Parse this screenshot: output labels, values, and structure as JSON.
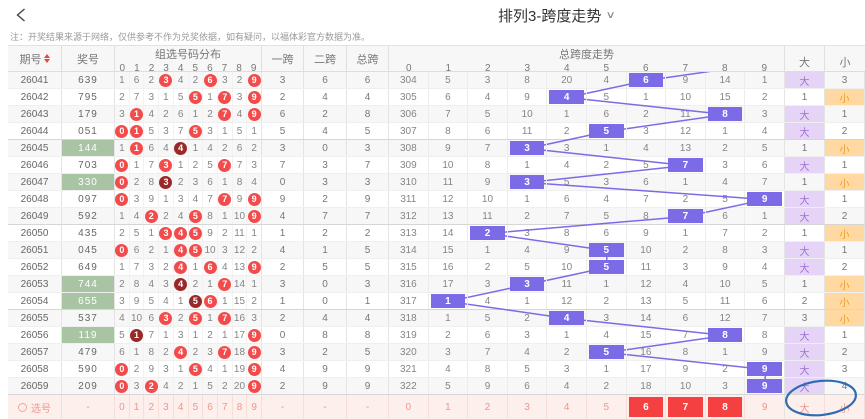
{
  "header": {
    "title": "排列3-跨度走势",
    "dropdown_icon": "∨",
    "back_icon": "‹"
  },
  "notice": "注：开奖结果来源于网络，仅供参考不作为兑奖依据，如有疑问，以福体彩官方数据为准。",
  "colors": {
    "accent_purple": "#7b6be6",
    "hit_red": "#f34b4b",
    "hit_dark_red": "#9b2828",
    "prize_green": "#a8c4a2",
    "big_bg": "#e5d4f6",
    "big_text": "#9e6fd6",
    "small_bg": "#ffd9a1",
    "small_text": "#f59b22",
    "select_red": "#f44040",
    "select_pink": "#f1948d",
    "annotation_blue": "#2e6db4"
  },
  "table": {
    "col_issue": "期号",
    "col_prize": "奖号",
    "col_dist": "组选号码分布",
    "col_span1": "一跨",
    "col_span2": "二跨",
    "col_span_total": "总跨",
    "col_trend": "总跨度走势",
    "col_big": "大",
    "col_small": "小",
    "digits": [
      "0",
      "1",
      "2",
      "3",
      "4",
      "5",
      "6",
      "7",
      "8",
      "9"
    ],
    "prev_span": 9,
    "rows": [
      {
        "issue": "26041",
        "prize": "639",
        "prize_hl": false,
        "dist": [
          "1",
          "6",
          "2",
          "3",
          "4",
          "2",
          "6",
          "3",
          "2",
          "9"
        ],
        "marks": [
          "",
          "",
          "",
          "r",
          "",
          "",
          "r",
          "",
          "",
          "r"
        ],
        "s1": "3",
        "s2": "6",
        "st": "6",
        "trend": [
          "304",
          "5",
          "3",
          "8",
          "20",
          "4",
          "6",
          "9",
          "14",
          "1"
        ],
        "span": 6,
        "big": "大",
        "big_hl": true,
        "small": "3",
        "small_hl": false
      },
      {
        "issue": "26042",
        "prize": "795",
        "prize_hl": false,
        "dist": [
          "2",
          "7",
          "3",
          "1",
          "5",
          "5",
          "1",
          "7",
          "3",
          "9"
        ],
        "marks": [
          "",
          "",
          "",
          "",
          "",
          "r",
          "",
          "r",
          "",
          "r"
        ],
        "s1": "2",
        "s2": "4",
        "st": "4",
        "trend": [
          "305",
          "6",
          "4",
          "9",
          "4",
          "5",
          "1",
          "10",
          "15",
          "2"
        ],
        "span": 4,
        "big": "1",
        "big_hl": false,
        "small": "小",
        "small_hl": true
      },
      {
        "issue": "26043",
        "prize": "179",
        "prize_hl": false,
        "dist": [
          "3",
          "1",
          "4",
          "2",
          "6",
          "1",
          "2",
          "7",
          "4",
          "9"
        ],
        "marks": [
          "",
          "r",
          "",
          "",
          "",
          "",
          "",
          "r",
          "",
          "r"
        ],
        "s1": "6",
        "s2": "2",
        "st": "8",
        "trend": [
          "306",
          "7",
          "5",
          "10",
          "1",
          "6",
          "2",
          "11",
          "8",
          "3"
        ],
        "span": 8,
        "big": "大",
        "big_hl": true,
        "small": "1",
        "small_hl": false
      },
      {
        "issue": "26044",
        "prize": "051",
        "prize_hl": false,
        "dist": [
          "0",
          "1",
          "5",
          "3",
          "7",
          "5",
          "3",
          "1",
          "5",
          "1"
        ],
        "marks": [
          "r",
          "r",
          "",
          "",
          "",
          "r",
          "",
          "",
          "",
          ""
        ],
        "s1": "5",
        "s2": "4",
        "st": "5",
        "trend": [
          "307",
          "8",
          "6",
          "11",
          "2",
          "5",
          "3",
          "12",
          "1",
          "4"
        ],
        "span": 5,
        "big": "大",
        "big_hl": true,
        "small": "2",
        "small_hl": false
      },
      {
        "issue": "26045",
        "prize": "144",
        "prize_hl": true,
        "dist": [
          "1",
          "1",
          "6",
          "4",
          "4",
          "1",
          "4",
          "2",
          "6",
          "2"
        ],
        "marks": [
          "",
          "r",
          "",
          "",
          "d",
          "",
          "",
          "",
          "",
          ""
        ],
        "s1": "3",
        "s2": "0",
        "st": "3",
        "trend": [
          "308",
          "9",
          "7",
          "3",
          "3",
          "1",
          "4",
          "13",
          "2",
          "5"
        ],
        "span": 3,
        "big": "1",
        "big_hl": false,
        "small": "小",
        "small_hl": true
      },
      {
        "issue": "26046",
        "prize": "703",
        "prize_hl": false,
        "dist": [
          "0",
          "1",
          "7",
          "3",
          "1",
          "2",
          "5",
          "7",
          "7",
          "3"
        ],
        "marks": [
          "r",
          "",
          "",
          "r",
          "",
          "",
          "",
          "r",
          "",
          ""
        ],
        "s1": "7",
        "s2": "3",
        "st": "7",
        "trend": [
          "309",
          "10",
          "8",
          "1",
          "4",
          "2",
          "5",
          "7",
          "3",
          "6"
        ],
        "span": 7,
        "big": "大",
        "big_hl": true,
        "small": "1",
        "small_hl": false
      },
      {
        "issue": "26047",
        "prize": "330",
        "prize_hl": true,
        "dist": [
          "0",
          "2",
          "8",
          "3",
          "2",
          "3",
          "6",
          "1",
          "8",
          "4"
        ],
        "marks": [
          "r",
          "",
          "",
          "d",
          "",
          "",
          "",
          "",
          "",
          ""
        ],
        "s1": "0",
        "s2": "3",
        "st": "3",
        "trend": [
          "310",
          "11",
          "9",
          "3",
          "5",
          "3",
          "6",
          "1",
          "4",
          "7"
        ],
        "span": 3,
        "big": "1",
        "big_hl": false,
        "small": "小",
        "small_hl": true
      },
      {
        "issue": "26048",
        "prize": "097",
        "prize_hl": false,
        "dist": [
          "0",
          "3",
          "9",
          "1",
          "3",
          "4",
          "7",
          "7",
          "9",
          "9"
        ],
        "marks": [
          "r",
          "",
          "",
          "",
          "",
          "",
          "",
          "r",
          "",
          "r"
        ],
        "s1": "9",
        "s2": "2",
        "st": "9",
        "trend": [
          "311",
          "12",
          "10",
          "1",
          "6",
          "4",
          "7",
          "2",
          "5",
          "9"
        ],
        "span": 9,
        "big": "大",
        "big_hl": true,
        "small": "1",
        "small_hl": false
      },
      {
        "issue": "26049",
        "prize": "592",
        "prize_hl": false,
        "dist": [
          "1",
          "4",
          "2",
          "2",
          "4",
          "5",
          "8",
          "1",
          "10",
          "9"
        ],
        "marks": [
          "",
          "",
          "r",
          "",
          "",
          "r",
          "",
          "",
          "",
          "r"
        ],
        "s1": "4",
        "s2": "7",
        "st": "7",
        "trend": [
          "312",
          "13",
          "11",
          "2",
          "7",
          "5",
          "8",
          "7",
          "6",
          "1"
        ],
        "span": 7,
        "big": "大",
        "big_hl": true,
        "small": "2",
        "small_hl": false
      },
      {
        "issue": "26050",
        "prize": "435",
        "prize_hl": false,
        "dist": [
          "2",
          "5",
          "1",
          "3",
          "4",
          "5",
          "9",
          "2",
          "11",
          "1"
        ],
        "marks": [
          "",
          "",
          "",
          "r",
          "r",
          "r",
          "",
          "",
          "",
          ""
        ],
        "s1": "1",
        "s2": "2",
        "st": "2",
        "trend": [
          "313",
          "14",
          "2",
          "3",
          "8",
          "6",
          "9",
          "1",
          "7",
          "2"
        ],
        "span": 2,
        "big": "1",
        "big_hl": false,
        "small": "小",
        "small_hl": true
      },
      {
        "issue": "26051",
        "prize": "045",
        "prize_hl": false,
        "dist": [
          "0",
          "6",
          "2",
          "1",
          "4",
          "5",
          "10",
          "3",
          "12",
          "2"
        ],
        "marks": [
          "r",
          "",
          "",
          "",
          "r",
          "r",
          "",
          "",
          "",
          ""
        ],
        "s1": "4",
        "s2": "1",
        "st": "5",
        "trend": [
          "314",
          "15",
          "1",
          "4",
          "9",
          "5",
          "10",
          "2",
          "8",
          "3"
        ],
        "span": 5,
        "big": "大",
        "big_hl": true,
        "small": "1",
        "small_hl": false
      },
      {
        "issue": "26052",
        "prize": "649",
        "prize_hl": false,
        "dist": [
          "1",
          "7",
          "3",
          "2",
          "4",
          "1",
          "6",
          "4",
          "13",
          "9"
        ],
        "marks": [
          "",
          "",
          "",
          "",
          "r",
          "",
          "r",
          "",
          "",
          "r"
        ],
        "s1": "2",
        "s2": "5",
        "st": "5",
        "trend": [
          "315",
          "16",
          "2",
          "5",
          "10",
          "5",
          "11",
          "3",
          "9",
          "4"
        ],
        "span": 5,
        "big": "大",
        "big_hl": true,
        "small": "2",
        "small_hl": false
      },
      {
        "issue": "26053",
        "prize": "744",
        "prize_hl": true,
        "dist": [
          "2",
          "8",
          "4",
          "3",
          "4",
          "2",
          "1",
          "7",
          "14",
          "1"
        ],
        "marks": [
          "",
          "",
          "",
          "",
          "d",
          "",
          "",
          "r",
          "",
          ""
        ],
        "s1": "3",
        "s2": "0",
        "st": "3",
        "trend": [
          "316",
          "17",
          "3",
          "3",
          "11",
          "1",
          "12",
          "4",
          "10",
          "5"
        ],
        "span": 3,
        "big": "1",
        "big_hl": false,
        "small": "小",
        "small_hl": true
      },
      {
        "issue": "26054",
        "prize": "655",
        "prize_hl": true,
        "dist": [
          "3",
          "9",
          "5",
          "4",
          "1",
          "5",
          "6",
          "1",
          "15",
          "2"
        ],
        "marks": [
          "",
          "",
          "",
          "",
          "",
          "d",
          "r",
          "",
          "",
          ""
        ],
        "s1": "1",
        "s2": "0",
        "st": "1",
        "trend": [
          "317",
          "1",
          "4",
          "1",
          "12",
          "2",
          "13",
          "5",
          "11",
          "6"
        ],
        "span": 1,
        "big": "2",
        "big_hl": false,
        "small": "小",
        "small_hl": true
      },
      {
        "issue": "26055",
        "prize": "537",
        "prize_hl": false,
        "dist": [
          "4",
          "10",
          "6",
          "3",
          "2",
          "5",
          "1",
          "7",
          "16",
          "3"
        ],
        "marks": [
          "",
          "",
          "",
          "r",
          "",
          "r",
          "",
          "r",
          "",
          ""
        ],
        "s1": "2",
        "s2": "4",
        "st": "4",
        "trend": [
          "318",
          "1",
          "5",
          "2",
          "4",
          "3",
          "14",
          "6",
          "12",
          "7"
        ],
        "span": 4,
        "big": "3",
        "big_hl": false,
        "small": "小",
        "small_hl": true
      },
      {
        "issue": "26056",
        "prize": "119",
        "prize_hl": true,
        "dist": [
          "5",
          "1",
          "7",
          "1",
          "3",
          "1",
          "2",
          "1",
          "17",
          "9"
        ],
        "marks": [
          "",
          "d",
          "",
          "",
          "",
          "",
          "",
          "",
          "",
          "r"
        ],
        "s1": "0",
        "s2": "8",
        "st": "8",
        "trend": [
          "319",
          "2",
          "6",
          "3",
          "1",
          "4",
          "15",
          "7",
          "8",
          "8"
        ],
        "span": 8,
        "big": "大",
        "big_hl": true,
        "small": "1",
        "small_hl": false
      },
      {
        "issue": "26057",
        "prize": "479",
        "prize_hl": false,
        "dist": [
          "6",
          "1",
          "8",
          "2",
          "4",
          "2",
          "3",
          "7",
          "18",
          "9"
        ],
        "marks": [
          "",
          "",
          "",
          "",
          "r",
          "",
          "",
          "r",
          "",
          "r"
        ],
        "s1": "3",
        "s2": "2",
        "st": "5",
        "trend": [
          "320",
          "3",
          "7",
          "4",
          "2",
          "5",
          "16",
          "8",
          "1",
          "9"
        ],
        "span": 5,
        "big": "大",
        "big_hl": true,
        "small": "2",
        "small_hl": false
      },
      {
        "issue": "26058",
        "prize": "590",
        "prize_hl": false,
        "dist": [
          "0",
          "2",
          "9",
          "3",
          "1",
          "5",
          "4",
          "1",
          "19",
          "9"
        ],
        "marks": [
          "r",
          "",
          "",
          "",
          "",
          "r",
          "",
          "",
          "",
          "r"
        ],
        "s1": "4",
        "s2": "9",
        "st": "9",
        "trend": [
          "321",
          "4",
          "8",
          "5",
          "3",
          "1",
          "17",
          "9",
          "2",
          "9"
        ],
        "span": 9,
        "big": "大",
        "big_hl": true,
        "small": "3",
        "small_hl": false
      },
      {
        "issue": "26059",
        "prize": "209",
        "prize_hl": false,
        "dist": [
          "0",
          "3",
          "2",
          "4",
          "2",
          "1",
          "5",
          "2",
          "20",
          "9"
        ],
        "marks": [
          "r",
          "",
          "r",
          "",
          "",
          "",
          "",
          "",
          "",
          "r"
        ],
        "s1": "2",
        "s2": "9",
        "st": "9",
        "trend": [
          "322",
          "5",
          "9",
          "6",
          "4",
          "2",
          "18",
          "10",
          "3",
          "9"
        ],
        "span": 9,
        "big": "大",
        "big_hl": true,
        "small": "4",
        "small_hl": false
      }
    ],
    "select_row": {
      "label": "选号",
      "prize": "-",
      "s1": "-",
      "s2": "-",
      "st": "-",
      "selected_trend_digits": [
        6,
        7,
        8
      ],
      "big": "大",
      "small": "小"
    }
  }
}
